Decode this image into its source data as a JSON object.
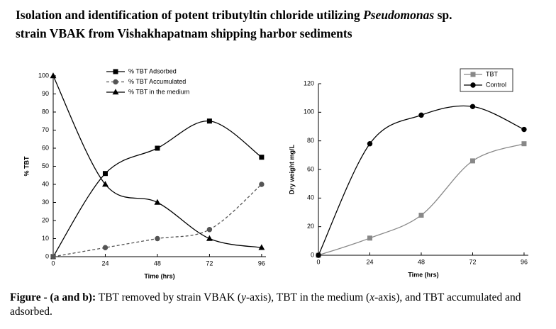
{
  "header": {
    "title_line1": [
      "Isolation and identification of potent tributyltin chloride utilizing ",
      "Pseudomonas",
      " sp."
    ],
    "title_line2": "strain VBAK from Vishakhapatnam shipping harbor sediments"
  },
  "chart_data": [
    {
      "type": "line",
      "x_label": "Time (hrs)",
      "y_label": "% TBT",
      "x": [
        0,
        24,
        48,
        72,
        96
      ],
      "xlim": [
        0,
        98
      ],
      "xticks": [
        0,
        24,
        48,
        72,
        96
      ],
      "ylim": [
        0,
        100
      ],
      "yticks": [
        0,
        10,
        20,
        30,
        40,
        50,
        60,
        70,
        80,
        90,
        100
      ],
      "smooth": true,
      "legend": "upper-center",
      "legend_frame": false,
      "series": [
        {
          "name": "% TBT Adsorbed",
          "color": "#000000",
          "marker": "square",
          "linestyle": "solid",
          "values": [
            0,
            46,
            60,
            75,
            55
          ]
        },
        {
          "name": "% TBT Accumulated",
          "color": "#555555",
          "marker": "circle",
          "linestyle": "dashed",
          "values": [
            0,
            5,
            10,
            15,
            40
          ]
        },
        {
          "name": "% TBT in the medium",
          "color": "#000000",
          "marker": "triangle",
          "linestyle": "solid",
          "values": [
            100,
            40,
            30,
            10,
            5
          ]
        }
      ]
    },
    {
      "type": "line",
      "x_label": "Time (hrs)",
      "y_label": "Dry weight mg/L",
      "x": [
        0,
        24,
        48,
        72,
        96
      ],
      "xlim": [
        0,
        98
      ],
      "xticks": [
        0,
        24,
        48,
        72,
        96
      ],
      "ylim": [
        0,
        120
      ],
      "yticks": [
        0,
        20,
        40,
        60,
        80,
        100,
        120
      ],
      "smooth": true,
      "legend": "upper-right",
      "legend_frame": true,
      "series": [
        {
          "name": "TBT",
          "color": "#888888",
          "marker": "square",
          "linestyle": "solid",
          "values": [
            0,
            12,
            28,
            66,
            78
          ]
        },
        {
          "name": "Control",
          "color": "#000000",
          "marker": "circle",
          "linestyle": "solid",
          "values": [
            0,
            78,
            98,
            104,
            88
          ]
        }
      ]
    }
  ],
  "caption": [
    "Figure - (a and b):",
    " TBT removed by strain VBAK (",
    "y",
    "-axis), TBT in the medium (",
    "x",
    "-axis), and TBT accumulated and adsorbed."
  ]
}
